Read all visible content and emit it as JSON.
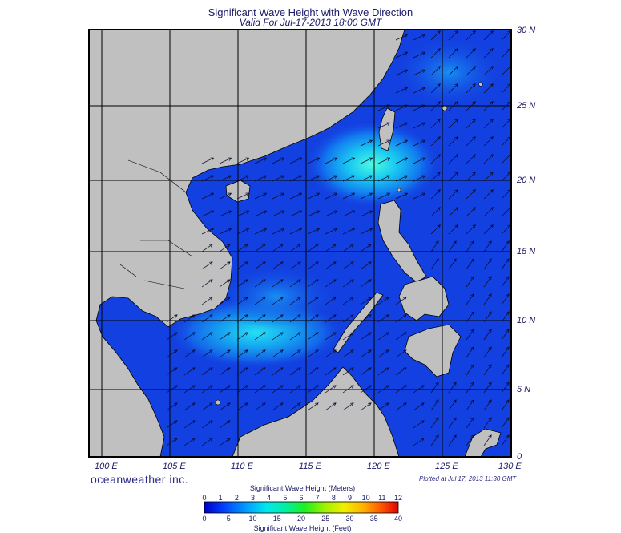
{
  "title": "Significant Wave Height with Wave Direction",
  "subtitle": "Valid For Jul-17-2013 18:00 GMT",
  "brand": "oceanweather inc.",
  "plotted": "Plotted at Jul 17, 2013 11:30 GMT",
  "lat_labels": [
    "30 N",
    "25 N",
    "20 N",
    "15 N",
    "10 N",
    "5 N",
    "0"
  ],
  "lon_labels": [
    "100 E",
    "105 E",
    "110 E",
    "115 E",
    "120 E",
    "125 E",
    "130 E"
  ],
  "legend": {
    "meters_title": "Significant Wave Height (Meters)",
    "feet_title": "Significant Wave Height (Feet)",
    "meters_ticks": [
      "0",
      "1",
      "2",
      "3",
      "4",
      "5",
      "6",
      "7",
      "8",
      "9",
      "10",
      "11",
      "12"
    ],
    "feet_ticks": [
      "0",
      "5",
      "10",
      "15",
      "20",
      "25",
      "30",
      "35",
      "40"
    ]
  },
  "colors": {
    "land": "#c0c0c0",
    "deep_sea": "#0a1e8c",
    "sea": "#1340e0",
    "grid": "#000000"
  }
}
